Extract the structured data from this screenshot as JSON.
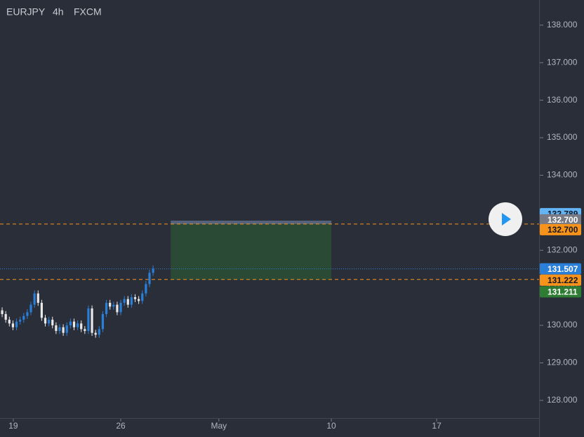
{
  "chart_data": {
    "type": "candlestick",
    "symbol": "EURJPY",
    "interval": "4h",
    "source": "FXCM",
    "up_color": "#2a7fd8",
    "down_color": "#e8e8e8",
    "x": [
      1,
      2,
      3,
      4,
      5,
      6,
      7,
      8,
      9,
      10,
      11,
      12,
      13,
      14,
      15,
      16,
      17,
      18,
      19,
      20,
      21,
      22,
      23,
      24,
      25,
      26,
      27,
      28,
      29,
      30,
      31,
      32,
      33,
      34,
      35,
      36,
      37,
      38,
      39,
      40,
      41,
      42,
      43
    ],
    "open": [
      130.4,
      130.3,
      130.15,
      130.05,
      129.95,
      130.1,
      130.15,
      130.25,
      130.35,
      130.55,
      130.85,
      130.6,
      130.2,
      130.05,
      130.15,
      130.0,
      129.85,
      129.95,
      129.8,
      130.0,
      130.1,
      129.95,
      130.05,
      129.9,
      129.85,
      130.45,
      129.8,
      129.75,
      129.9,
      130.3,
      130.6,
      130.5,
      130.55,
      130.35,
      130.6,
      130.7,
      130.55,
      130.75,
      130.7,
      130.65,
      130.85,
      131.1,
      131.4
    ],
    "high": [
      130.48,
      130.38,
      130.23,
      130.13,
      130.18,
      130.23,
      130.33,
      130.43,
      130.63,
      130.93,
      130.93,
      130.68,
      130.28,
      130.23,
      130.23,
      130.08,
      130.03,
      130.03,
      130.08,
      130.18,
      130.18,
      130.13,
      130.13,
      129.98,
      130.53,
      130.53,
      129.88,
      129.98,
      130.38,
      130.68,
      130.68,
      130.63,
      130.63,
      130.68,
      130.78,
      130.78,
      130.83,
      130.83,
      130.78,
      130.93,
      131.18,
      131.48,
      131.6
    ],
    "low": [
      130.22,
      130.07,
      129.97,
      129.87,
      129.87,
      130.02,
      130.07,
      130.17,
      130.27,
      130.47,
      130.52,
      130.12,
      129.97,
      129.97,
      129.92,
      129.77,
      129.77,
      129.72,
      129.72,
      129.92,
      129.87,
      129.87,
      129.82,
      129.77,
      129.77,
      129.72,
      129.67,
      129.67,
      129.82,
      130.22,
      130.42,
      130.42,
      130.27,
      130.27,
      130.52,
      130.47,
      130.47,
      130.62,
      130.57,
      130.57,
      130.77,
      131.02,
      131.32
    ],
    "close": [
      130.3,
      130.15,
      130.05,
      129.95,
      130.1,
      130.15,
      130.25,
      130.35,
      130.55,
      130.85,
      130.6,
      130.2,
      130.05,
      130.15,
      130.0,
      129.85,
      129.95,
      129.8,
      130.0,
      130.1,
      129.95,
      130.05,
      129.9,
      129.85,
      130.45,
      129.8,
      129.75,
      129.9,
      130.3,
      130.6,
      130.5,
      130.55,
      130.35,
      130.6,
      130.7,
      130.55,
      130.75,
      130.7,
      130.65,
      130.85,
      131.1,
      131.4,
      131.507
    ],
    "xlim": [
      0.4,
      150.4
    ],
    "xticks": [
      {
        "value": 4.1,
        "label": "19"
      },
      {
        "value": 34.0,
        "label": "26"
      },
      {
        "value": 61.3,
        "label": "May"
      },
      {
        "value": 92.6,
        "label": "10"
      },
      {
        "value": 121.9,
        "label": "17"
      }
    ],
    "ylim": [
      127.53,
      138.67
    ],
    "yticks": [
      {
        "value": 128,
        "label": "128.000"
      },
      {
        "value": 129,
        "label": "129.000"
      },
      {
        "value": 130,
        "label": "130.000"
      },
      {
        "value": 131,
        "label": "131.000"
      },
      {
        "value": 132,
        "label": "132.000"
      },
      {
        "value": 133,
        "label": "133.000"
      },
      {
        "value": 134,
        "label": "134.000"
      },
      {
        "value": 135,
        "label": "135.000"
      },
      {
        "value": 136,
        "label": "136.000"
      },
      {
        "value": 137,
        "label": "137.000"
      },
      {
        "value": 138,
        "label": "138.000"
      }
    ],
    "levels": [
      {
        "value": 132.7,
        "label": "132.700",
        "color": "#f7931a",
        "style": "dashed"
      },
      {
        "value": 131.222,
        "label": "131.222",
        "color": "#f7931a",
        "style": "dashed"
      },
      {
        "value": 131.507,
        "label": "131.507",
        "color": "#2a7fd8",
        "style": "dotted"
      }
    ],
    "zone": {
      "x0": 47.9,
      "x1": 92.6,
      "top": {
        "value": 132.789,
        "label": "132.789"
      },
      "entry": {
        "value": 132.7,
        "label": "132.700"
      },
      "bottom": {
        "value": 131.211,
        "label": "131.211"
      },
      "color": "#2e7d32"
    }
  }
}
